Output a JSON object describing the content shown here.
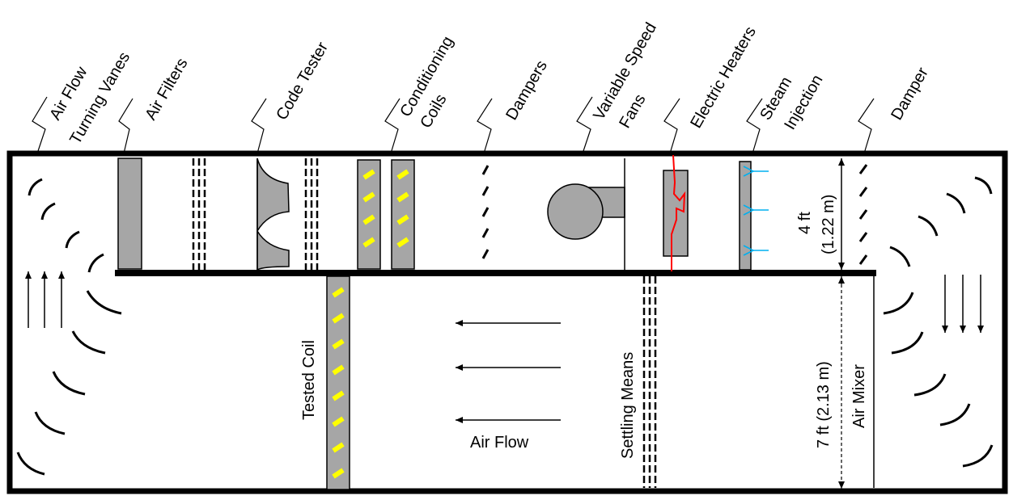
{
  "diagram": {
    "labels": {
      "turning_vanes_1": "Air Flow",
      "turning_vanes_2": "Turning Vanes",
      "air_filters": "Air Filters",
      "code_tester": "Code Tester",
      "conditioning_coils_1": "Conditioning",
      "conditioning_coils_2": "Coils",
      "dampers": "Dampers",
      "variable_speed_fans_1": "Variable Speed",
      "variable_speed_fans_2": "Fans",
      "electric_heaters": "Electric Heaters",
      "steam_injection_1": "Steam",
      "steam_injection_2": "Injection",
      "damper": "Damper",
      "upper_height_1": "4 ft",
      "upper_height_2": "(1.22 m)",
      "tested_coil": "Tested Coil",
      "air_flow": "Air Flow",
      "settling_means": "Settling Means",
      "lower_height": "7 ft (2.13 m)",
      "air_mixer": "Air Mixer"
    },
    "colors": {
      "outline": "#000000",
      "component_fill": "#a6a6a6",
      "coil_mark": "#ffff00",
      "heater_wire": "#ff0000",
      "steam_arrow": "#00b0f0"
    }
  }
}
